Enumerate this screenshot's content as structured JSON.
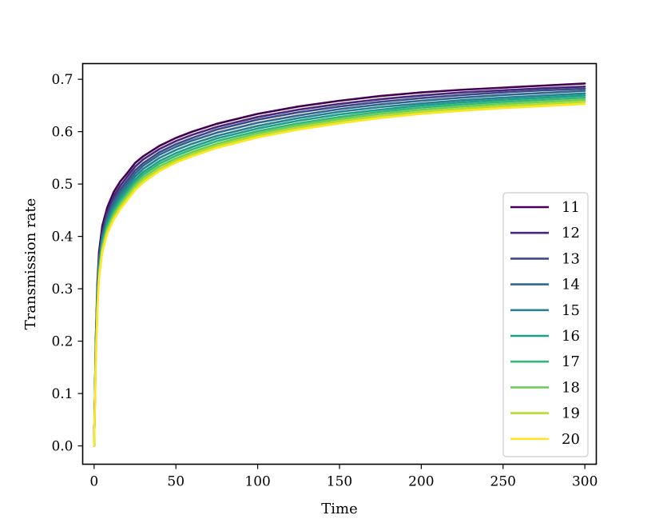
{
  "chart_data": {
    "type": "line",
    "title": "",
    "xlabel": "Time",
    "ylabel": "Transmission rate",
    "xlim": [
      -7,
      307
    ],
    "ylim": [
      -0.035,
      0.73
    ],
    "xticks": [
      0,
      50,
      100,
      150,
      200,
      250,
      300
    ],
    "yticks": [
      0.0,
      0.1,
      0.2,
      0.3,
      0.4,
      0.5,
      0.6,
      0.7
    ],
    "xtick_labels": [
      "0",
      "50",
      "100",
      "150",
      "200",
      "250",
      "300"
    ],
    "ytick_labels": [
      "0.0",
      "0.1",
      "0.2",
      "0.3",
      "0.4",
      "0.5",
      "0.6",
      "0.7"
    ],
    "grid": false,
    "legend_position": "center-right",
    "x": [
      0,
      1,
      2,
      3,
      5,
      8,
      12,
      16,
      20,
      25,
      30,
      40,
      50,
      60,
      75,
      100,
      125,
      150,
      175,
      200,
      225,
      250,
      275,
      300
    ],
    "series": [
      {
        "name": "11",
        "color": "#440154",
        "values": [
          0.0,
          0.2,
          0.31,
          0.37,
          0.42,
          0.455,
          0.485,
          0.505,
          0.52,
          0.54,
          0.553,
          0.573,
          0.588,
          0.6,
          0.615,
          0.634,
          0.648,
          0.659,
          0.668,
          0.675,
          0.68,
          0.684,
          0.688,
          0.692
        ]
      },
      {
        "name": "12",
        "color": "#482878",
        "values": [
          0.0,
          0.2,
          0.3,
          0.36,
          0.41,
          0.447,
          0.477,
          0.497,
          0.513,
          0.533,
          0.547,
          0.567,
          0.582,
          0.594,
          0.609,
          0.628,
          0.642,
          0.653,
          0.662,
          0.669,
          0.675,
          0.679,
          0.683,
          0.686
        ]
      },
      {
        "name": "13",
        "color": "#3e4989",
        "values": [
          0.0,
          0.19,
          0.295,
          0.355,
          0.405,
          0.44,
          0.47,
          0.49,
          0.506,
          0.526,
          0.54,
          0.561,
          0.576,
          0.588,
          0.604,
          0.623,
          0.637,
          0.648,
          0.657,
          0.664,
          0.67,
          0.675,
          0.679,
          0.682
        ]
      },
      {
        "name": "14",
        "color": "#31688e",
        "values": [
          0.0,
          0.19,
          0.29,
          0.35,
          0.4,
          0.435,
          0.464,
          0.484,
          0.5,
          0.52,
          0.535,
          0.556,
          0.571,
          0.583,
          0.598,
          0.617,
          0.631,
          0.643,
          0.652,
          0.659,
          0.665,
          0.67,
          0.674,
          0.678
        ]
      },
      {
        "name": "15",
        "color": "#26828e",
        "values": [
          0.0,
          0.18,
          0.285,
          0.345,
          0.395,
          0.43,
          0.458,
          0.478,
          0.494,
          0.514,
          0.529,
          0.55,
          0.565,
          0.577,
          0.592,
          0.611,
          0.626,
          0.638,
          0.647,
          0.654,
          0.66,
          0.665,
          0.669,
          0.673
        ]
      },
      {
        "name": "16",
        "color": "#1f9e89",
        "values": [
          0.0,
          0.18,
          0.28,
          0.34,
          0.39,
          0.425,
          0.452,
          0.472,
          0.488,
          0.508,
          0.523,
          0.544,
          0.559,
          0.571,
          0.587,
          0.606,
          0.621,
          0.633,
          0.642,
          0.65,
          0.656,
          0.661,
          0.665,
          0.669
        ]
      },
      {
        "name": "17",
        "color": "#35b779",
        "values": [
          0.0,
          0.17,
          0.275,
          0.335,
          0.385,
          0.42,
          0.447,
          0.467,
          0.483,
          0.503,
          0.518,
          0.539,
          0.554,
          0.566,
          0.582,
          0.601,
          0.616,
          0.628,
          0.638,
          0.646,
          0.652,
          0.657,
          0.661,
          0.665
        ]
      },
      {
        "name": "18",
        "color": "#6ece58",
        "values": [
          0.0,
          0.17,
          0.27,
          0.33,
          0.38,
          0.415,
          0.442,
          0.462,
          0.478,
          0.498,
          0.513,
          0.534,
          0.549,
          0.561,
          0.577,
          0.597,
          0.612,
          0.624,
          0.634,
          0.642,
          0.648,
          0.653,
          0.657,
          0.661
        ]
      },
      {
        "name": "19",
        "color": "#b5de2b",
        "values": [
          0.0,
          0.16,
          0.265,
          0.325,
          0.375,
          0.41,
          0.437,
          0.457,
          0.473,
          0.493,
          0.508,
          0.529,
          0.545,
          0.557,
          0.573,
          0.593,
          0.608,
          0.62,
          0.63,
          0.638,
          0.644,
          0.649,
          0.653,
          0.657
        ]
      },
      {
        "name": "20",
        "color": "#fde725",
        "values": [
          0.0,
          0.16,
          0.26,
          0.32,
          0.37,
          0.405,
          0.432,
          0.452,
          0.468,
          0.488,
          0.503,
          0.525,
          0.541,
          0.553,
          0.569,
          0.589,
          0.604,
          0.616,
          0.626,
          0.634,
          0.64,
          0.645,
          0.649,
          0.653
        ]
      }
    ]
  }
}
